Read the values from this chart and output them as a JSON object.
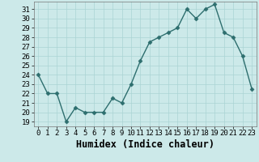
{
  "x": [
    0,
    1,
    2,
    3,
    4,
    5,
    6,
    7,
    8,
    9,
    10,
    11,
    12,
    13,
    14,
    15,
    16,
    17,
    18,
    19,
    20,
    21,
    22,
    23
  ],
  "y": [
    24,
    22,
    22,
    19,
    20.5,
    20,
    20,
    20,
    21.5,
    21,
    23,
    25.5,
    27.5,
    28,
    28.5,
    29,
    31,
    30,
    31,
    31.5,
    28.5,
    28,
    26,
    22.5
  ],
  "xlabel": "Humidex (Indice chaleur)",
  "ylim": [
    18.5,
    31.8
  ],
  "xlim": [
    -0.5,
    23.5
  ],
  "yticks": [
    19,
    20,
    21,
    22,
    23,
    24,
    25,
    26,
    27,
    28,
    29,
    30,
    31
  ],
  "xticks": [
    0,
    1,
    2,
    3,
    4,
    5,
    6,
    7,
    8,
    9,
    10,
    11,
    12,
    13,
    14,
    15,
    16,
    17,
    18,
    19,
    20,
    21,
    22,
    23
  ],
  "line_color": "#2d6e6e",
  "marker": "D",
  "marker_size": 2.5,
  "bg_color": "#cce9e9",
  "grid_color": "#aad4d4",
  "tick_label_fontsize": 6.5,
  "xlabel_fontsize": 8.5,
  "linewidth": 1.0
}
